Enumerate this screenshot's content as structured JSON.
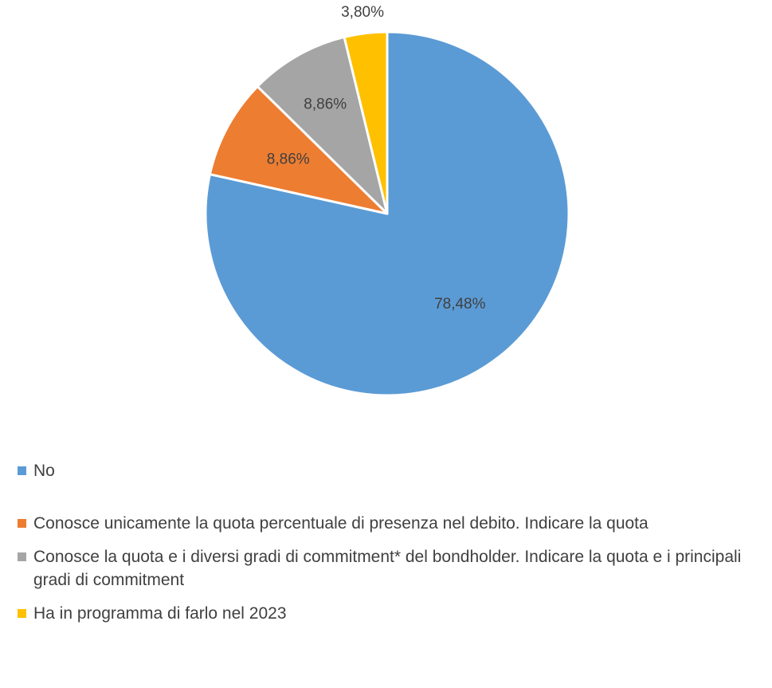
{
  "chart_data": {
    "type": "pie",
    "title": "",
    "start_angle_deg": 0,
    "direction": "clockwise",
    "slices": [
      {
        "label": "No",
        "value": 78.48,
        "display": "78,48%",
        "color": "#5B9BD5"
      },
      {
        "label": "Conosce unicamente la quota percentuale di presenza nel debito. Indicare la quota",
        "value": 8.86,
        "display": "8,86%",
        "color": "#ED7D31"
      },
      {
        "label": "Conosce la quota e i diversi gradi di commitment* del bondholder. Indicare la quota e i principali gradi di commitment",
        "value": 8.86,
        "display": "8,86%",
        "color": "#A5A5A5"
      },
      {
        "label": "Ha in programma di farlo nel 2023",
        "value": 3.8,
        "display": "3,80%",
        "color": "#FFC000"
      }
    ],
    "legend_position": "bottom-left",
    "data_labels": true
  }
}
